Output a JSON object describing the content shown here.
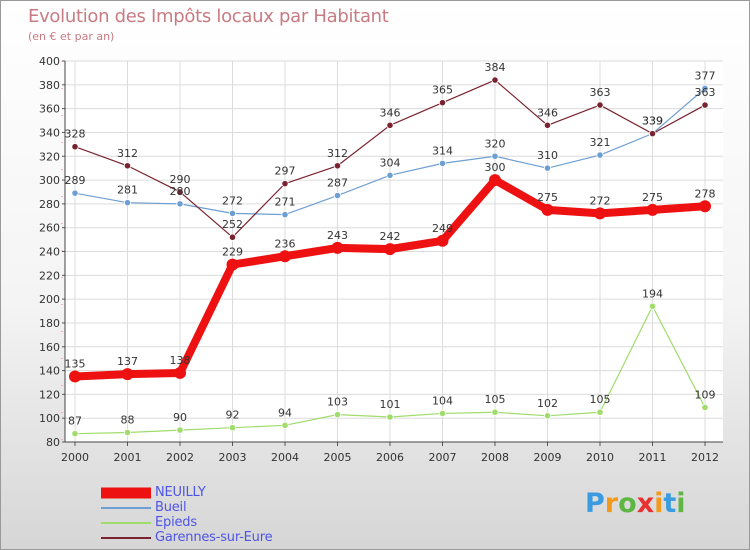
{
  "chart_data": {
    "type": "line",
    "title": "Evolution des Impôts locaux par Habitant",
    "subtitle": "(en € et par an)",
    "xlabel": "",
    "ylabel": "",
    "categories": [
      "2000",
      "2001",
      "2002",
      "2003",
      "2004",
      "2005",
      "2006",
      "2007",
      "2008",
      "2009",
      "2010",
      "2011",
      "2012"
    ],
    "ylim": [
      80,
      400
    ],
    "yticks": [
      80,
      100,
      120,
      140,
      160,
      180,
      200,
      220,
      240,
      260,
      280,
      300,
      320,
      340,
      360,
      380,
      400
    ],
    "grid": true,
    "legend_position": "bottom-left",
    "series": [
      {
        "name": "NEUILLY",
        "color": "#ee1111",
        "values": [
          135,
          137,
          138,
          229,
          236,
          243,
          242,
          249,
          300,
          275,
          272,
          275,
          278
        ],
        "labels": [
          "135",
          "137",
          "138",
          "229",
          "236",
          "243",
          "242",
          "249",
          "300",
          "275",
          "272",
          "275",
          "278"
        ]
      },
      {
        "name": "Bueil",
        "color": "#6e9fd2",
        "values": [
          289,
          281,
          280,
          272,
          271,
          287,
          304,
          314,
          320,
          310,
          321,
          339,
          377
        ],
        "labels": [
          "289",
          "281",
          "280",
          "272",
          "271",
          "287",
          "304",
          "314",
          "320",
          "310",
          "321",
          "339",
          "377"
        ]
      },
      {
        "name": "Epieds",
        "color": "#9fdc6b",
        "values": [
          87,
          88,
          90,
          92,
          94,
          103,
          101,
          104,
          105,
          102,
          105,
          194,
          109
        ],
        "labels": [
          "87",
          "88",
          "90",
          "92",
          "94",
          "103",
          "101",
          "104",
          "105",
          "102",
          "105",
          "194",
          "109"
        ]
      },
      {
        "name": "Garennes-sur-Eure",
        "color": "#7a2330",
        "values": [
          328,
          312,
          290,
          252,
          297,
          312,
          346,
          365,
          384,
          346,
          363,
          339,
          363
        ],
        "labels": [
          "328",
          "312",
          "290",
          "252",
          "297",
          "312",
          "346",
          "365",
          "384",
          "346",
          "363",
          "339",
          "363"
        ]
      }
    ]
  },
  "logo": {
    "letters": [
      "P",
      "r",
      "o",
      "x",
      "i",
      "t",
      "i"
    ],
    "colors": [
      "#3a9be0",
      "#f39a1d",
      "#5fb643",
      "#e8312f",
      "#f39a1d",
      "#3a9be0",
      "#5fb643"
    ]
  }
}
